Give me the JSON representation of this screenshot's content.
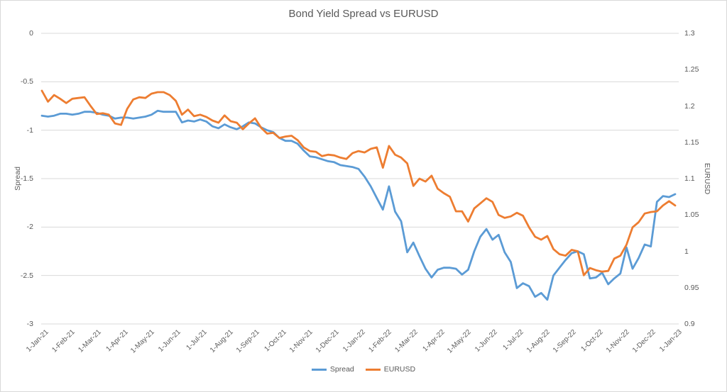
{
  "chart_data": {
    "type": "line",
    "title": "Bond Yield Spread vs EURUSD",
    "grid": "horizontal-only",
    "legend_position": "bottom-center",
    "colors": {
      "spread": "#5B9BD5",
      "eurusd": "#ED7D31",
      "text": "#595959",
      "gridline": "#D9D9D9"
    },
    "y_left": {
      "title": "Spread",
      "min": -3,
      "max": 0,
      "ticks": [
        "0",
        "-0.5",
        "-1",
        "-1.5",
        "-2",
        "-2.5",
        "-3"
      ]
    },
    "y_right": {
      "title": "EURUSD",
      "min": 0.9,
      "max": 1.3,
      "ticks": [
        "1.3",
        "1.25",
        "1.2",
        "1.15",
        "1.1",
        "1.05",
        "1",
        "0.95",
        "0.9"
      ]
    },
    "x_axis": {
      "tick_labels": [
        "1-Jan-21",
        "1-Feb-21",
        "1-Mar-21",
        "1-Apr-21",
        "1-May-21",
        "1-Jun-21",
        "1-Jul-21",
        "1-Aug-21",
        "1-Sep-21",
        "1-Oct-21",
        "1-Nov-21",
        "1-Dec-21",
        "1-Jan-22",
        "1-Feb-22",
        "1-Mar-22",
        "1-Apr-22",
        "1-May-22",
        "1-Jun-22",
        "1-Jul-22",
        "1-Aug-22",
        "1-Sep-22",
        "1-Oct-22",
        "1-Nov-22",
        "1-Dec-22",
        "1-Jan-23"
      ]
    },
    "x_dates": [
      "2021-01-01",
      "2021-01-08",
      "2021-01-15",
      "2021-01-22",
      "2021-01-29",
      "2021-02-05",
      "2021-02-12",
      "2021-02-19",
      "2021-02-26",
      "2021-03-05",
      "2021-03-12",
      "2021-03-19",
      "2021-03-26",
      "2021-04-02",
      "2021-04-09",
      "2021-04-16",
      "2021-04-23",
      "2021-04-30",
      "2021-05-07",
      "2021-05-14",
      "2021-05-21",
      "2021-05-28",
      "2021-06-04",
      "2021-06-11",
      "2021-06-18",
      "2021-06-25",
      "2021-07-02",
      "2021-07-09",
      "2021-07-16",
      "2021-07-23",
      "2021-07-30",
      "2021-08-06",
      "2021-08-13",
      "2021-08-20",
      "2021-08-27",
      "2021-09-03",
      "2021-09-10",
      "2021-09-17",
      "2021-09-24",
      "2021-10-01",
      "2021-10-08",
      "2021-10-15",
      "2021-10-22",
      "2021-10-29",
      "2021-11-05",
      "2021-11-12",
      "2021-11-19",
      "2021-11-26",
      "2021-12-03",
      "2021-12-10",
      "2021-12-17",
      "2021-12-24",
      "2021-12-31",
      "2022-01-07",
      "2022-01-14",
      "2022-01-21",
      "2022-01-28",
      "2022-02-04",
      "2022-02-11",
      "2022-02-18",
      "2022-02-25",
      "2022-03-04",
      "2022-03-11",
      "2022-03-18",
      "2022-03-25",
      "2022-04-01",
      "2022-04-08",
      "2022-04-15",
      "2022-04-22",
      "2022-04-29",
      "2022-05-06",
      "2022-05-13",
      "2022-05-20",
      "2022-05-27",
      "2022-06-03",
      "2022-06-10",
      "2022-06-17",
      "2022-06-24",
      "2022-07-01",
      "2022-07-08",
      "2022-07-15",
      "2022-07-22",
      "2022-07-29",
      "2022-08-05",
      "2022-08-12",
      "2022-08-19",
      "2022-08-26",
      "2022-09-02",
      "2022-09-09",
      "2022-09-16",
      "2022-09-23",
      "2022-09-30",
      "2022-10-07",
      "2022-10-14",
      "2022-10-21",
      "2022-10-28",
      "2022-11-04",
      "2022-11-11",
      "2022-11-18",
      "2022-11-25",
      "2022-12-02",
      "2022-12-09",
      "2022-12-16",
      "2022-12-23",
      "2022-12-30"
    ],
    "series": [
      {
        "name": "Spread",
        "axis": "left",
        "color": "#5B9BD5",
        "values": [
          -0.85,
          -0.86,
          -0.85,
          -0.83,
          -0.83,
          -0.84,
          -0.83,
          -0.81,
          -0.81,
          -0.82,
          -0.84,
          -0.85,
          -0.88,
          -0.87,
          -0.87,
          -0.88,
          -0.87,
          -0.86,
          -0.84,
          -0.8,
          -0.81,
          -0.81,
          -0.81,
          -0.92,
          -0.9,
          -0.91,
          -0.89,
          -0.91,
          -0.96,
          -0.98,
          -0.94,
          -0.97,
          -0.99,
          -0.96,
          -0.92,
          -0.93,
          -0.97,
          -1.0,
          -1.02,
          -1.08,
          -1.11,
          -1.11,
          -1.14,
          -1.21,
          -1.27,
          -1.28,
          -1.3,
          -1.32,
          -1.33,
          -1.36,
          -1.37,
          -1.38,
          -1.4,
          -1.48,
          -1.58,
          -1.7,
          -1.82,
          -1.58,
          -1.84,
          -1.94,
          -2.26,
          -2.16,
          -2.3,
          -2.43,
          -2.52,
          -2.44,
          -2.42,
          -2.42,
          -2.43,
          -2.49,
          -2.44,
          -2.25,
          -2.1,
          -2.02,
          -2.13,
          -2.08,
          -2.26,
          -2.36,
          -2.63,
          -2.58,
          -2.61,
          -2.72,
          -2.68,
          -2.75,
          -2.5,
          -2.42,
          -2.34,
          -2.27,
          -2.25,
          -2.28,
          -2.53,
          -2.52,
          -2.47,
          -2.59,
          -2.53,
          -2.48,
          -2.21,
          -2.43,
          -2.32,
          -2.18,
          -2.2,
          -1.74,
          -1.68,
          -1.69,
          -1.66
        ]
      },
      {
        "name": "EURUSD",
        "axis": "right",
        "color": "#ED7D31",
        "values": [
          1.221,
          1.206,
          1.215,
          1.21,
          1.204,
          1.21,
          1.211,
          1.212,
          1.2,
          1.189,
          1.19,
          1.188,
          1.176,
          1.174,
          1.196,
          1.209,
          1.212,
          1.211,
          1.217,
          1.219,
          1.219,
          1.215,
          1.207,
          1.188,
          1.195,
          1.186,
          1.188,
          1.185,
          1.18,
          1.177,
          1.187,
          1.179,
          1.177,
          1.168,
          1.176,
          1.183,
          1.17,
          1.162,
          1.163,
          1.156,
          1.158,
          1.159,
          1.153,
          1.143,
          1.138,
          1.137,
          1.131,
          1.133,
          1.132,
          1.129,
          1.127,
          1.135,
          1.138,
          1.136,
          1.141,
          1.143,
          1.115,
          1.145,
          1.133,
          1.129,
          1.121,
          1.09,
          1.1,
          1.096,
          1.104,
          1.086,
          1.08,
          1.075,
          1.055,
          1.055,
          1.041,
          1.059,
          1.066,
          1.073,
          1.068,
          1.05,
          1.046,
          1.048,
          1.053,
          1.049,
          1.033,
          1.02,
          1.016,
          1.021,
          1.003,
          0.996,
          0.994,
          1.002,
          1.0,
          0.967,
          0.977,
          0.974,
          0.972,
          0.973,
          0.99,
          0.994,
          1.009,
          1.033,
          1.04,
          1.052,
          1.054,
          1.055,
          1.063,
          1.069,
          1.063
        ]
      }
    ]
  }
}
